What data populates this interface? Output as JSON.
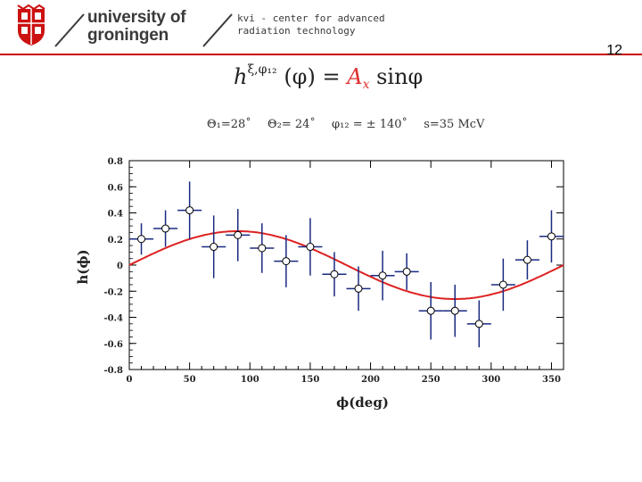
{
  "header": {
    "university_line1": "university of",
    "university_line2": "groningen",
    "institute_line1": "kvi - center for advanced",
    "institute_line2": "radiation technology",
    "crest_icon": "university-crest-icon",
    "rule_color": "#cc0000"
  },
  "page_number": "12",
  "formula": {
    "h": "h",
    "sup": "ξ,φ₁₂",
    "arg": "(φ) = ",
    "amp": "A",
    "amp_sub": "x",
    "func": "sinφ"
  },
  "params": {
    "theta1": "Θ₁=28˚",
    "theta2": "Θ₂= 24˚",
    "phi12": "φ₁₂ = ± 140˚",
    "s": "s=35 McV"
  },
  "chart_data": {
    "type": "scatter",
    "xlabel": "ϕ(deg)",
    "ylabel": "h(ϕ)",
    "xlim": [
      0,
      360
    ],
    "ylim": [
      -0.8,
      0.8
    ],
    "xticks": [
      0,
      50,
      100,
      150,
      200,
      250,
      300,
      350
    ],
    "yticks": [
      0.8,
      0.6,
      0.4,
      0.2,
      0,
      -0.2,
      -0.4,
      -0.6,
      -0.8
    ],
    "ytick_labels": [
      "0.8",
      "0.6",
      "0.4",
      "0.2",
      "0",
      "-0.2",
      "-0.4",
      "-0.6",
      "-0.8"
    ],
    "grid": false,
    "points": [
      {
        "x": 10,
        "y": 0.2,
        "xerr": 10,
        "yerr": 0.12
      },
      {
        "x": 30,
        "y": 0.28,
        "xerr": 10,
        "yerr": 0.14
      },
      {
        "x": 50,
        "y": 0.42,
        "xerr": 10,
        "yerr": 0.22
      },
      {
        "x": 70,
        "y": 0.14,
        "xerr": 10,
        "yerr": 0.24
      },
      {
        "x": 90,
        "y": 0.23,
        "xerr": 10,
        "yerr": 0.2
      },
      {
        "x": 110,
        "y": 0.13,
        "xerr": 10,
        "yerr": 0.19
      },
      {
        "x": 130,
        "y": 0.03,
        "xerr": 10,
        "yerr": 0.2
      },
      {
        "x": 150,
        "y": 0.14,
        "xerr": 10,
        "yerr": 0.22
      },
      {
        "x": 170,
        "y": -0.07,
        "xerr": 10,
        "yerr": 0.17
      },
      {
        "x": 190,
        "y": -0.18,
        "xerr": 10,
        "yerr": 0.17
      },
      {
        "x": 210,
        "y": -0.08,
        "xerr": 10,
        "yerr": 0.19
      },
      {
        "x": 230,
        "y": -0.05,
        "xerr": 10,
        "yerr": 0.14
      },
      {
        "x": 250,
        "y": -0.35,
        "xerr": 10,
        "yerr": 0.22
      },
      {
        "x": 270,
        "y": -0.35,
        "xerr": 10,
        "yerr": 0.2
      },
      {
        "x": 290,
        "y": -0.45,
        "xerr": 10,
        "yerr": 0.18
      },
      {
        "x": 310,
        "y": -0.15,
        "xerr": 10,
        "yerr": 0.2
      },
      {
        "x": 330,
        "y": 0.04,
        "xerr": 10,
        "yerr": 0.15
      },
      {
        "x": 350,
        "y": 0.22,
        "xerr": 10,
        "yerr": 0.2
      }
    ],
    "fit": {
      "type": "sine",
      "amplitude": 0.26
    },
    "colors": {
      "points": "#1a2a80",
      "fit": "#dd2222",
      "axis": "#000000"
    }
  }
}
